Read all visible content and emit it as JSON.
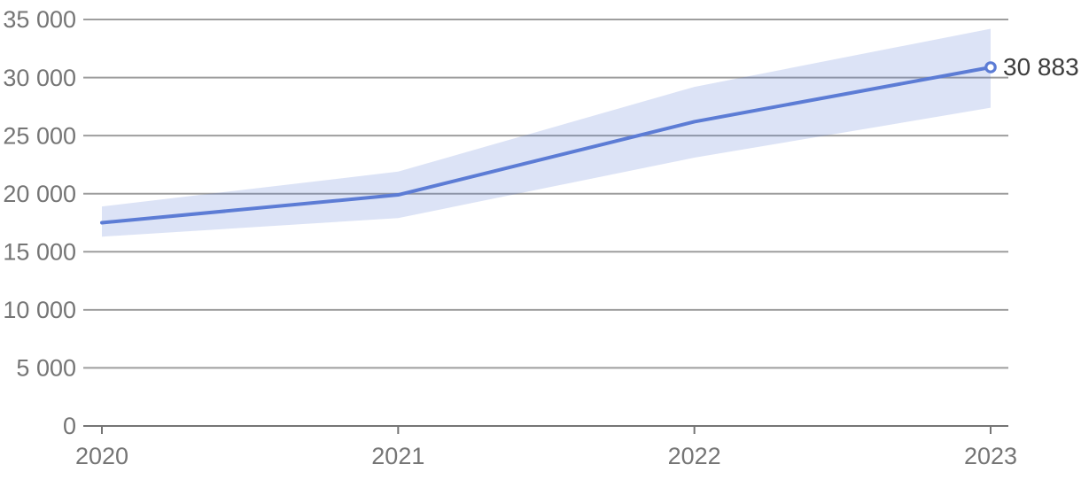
{
  "chart_data": {
    "type": "line",
    "title": "",
    "xlabel": "",
    "ylabel": "",
    "x_labels": [
      "2020",
      "2021",
      "2022",
      "2023"
    ],
    "series": [
      {
        "name": "value",
        "values": [
          17500,
          19900,
          26200,
          30883
        ]
      },
      {
        "name": "uncertainty-upper",
        "values": [
          18900,
          21900,
          29200,
          34200
        ]
      },
      {
        "name": "uncertainty-lower",
        "values": [
          16300,
          17900,
          23100,
          27400
        ]
      }
    ],
    "end_point": {
      "x_label": "2023",
      "value": 30883,
      "label": "30 883"
    },
    "ylim": [
      0,
      35000
    ],
    "y_ticks": [
      0,
      5000,
      10000,
      15000,
      20000,
      25000,
      30000,
      35000
    ],
    "y_tick_labels": [
      "0",
      "5 000",
      "10 000",
      "15 000",
      "20 000",
      "25 000",
      "30 000",
      "35 000"
    ],
    "grid": true,
    "legend": "none",
    "colors": {
      "line": "#5c7cd5",
      "band_fill": "#5c7cd5",
      "band_opacity": 0.21,
      "grid": "#9e9e9e",
      "axis": "#757575",
      "tick_text": "#757575",
      "annotation_text": "#3d3d3d",
      "marker_fill": "#ffffff"
    }
  }
}
